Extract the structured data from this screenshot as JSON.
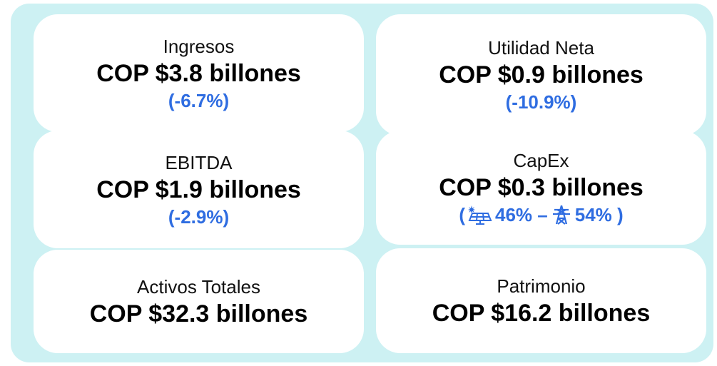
{
  "cards": [
    {
      "label": "Ingresos",
      "value": "COP $3.8 billones",
      "change": "(-6.7%)"
    },
    {
      "label": "Utilidad Neta",
      "value": "COP $0.9 billones",
      "change": "(-10.9%)"
    },
    {
      "label": "EBITDA",
      "value": "COP $1.9 billones",
      "change": "(-2.9%)"
    },
    {
      "label": "CapEx",
      "value": "COP $0.3 billones",
      "change_parts": [
        "(",
        "46% –",
        "54% )"
      ]
    },
    {
      "label": "Activos Totales",
      "value": "COP $32.3 billones"
    },
    {
      "label": "Patrimonio",
      "value": "COP $16.2 billones"
    }
  ]
}
